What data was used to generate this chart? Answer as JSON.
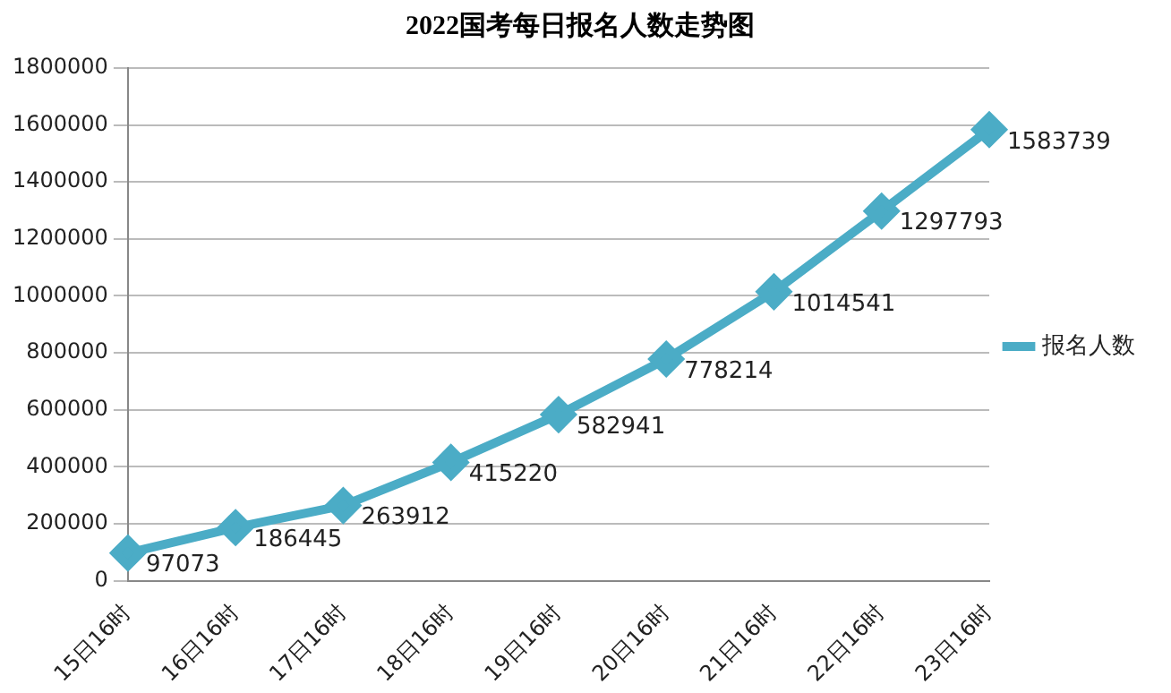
{
  "chart_data": {
    "type": "line",
    "title": "2022国考每日报名人数走势图",
    "categories": [
      "15日16时",
      "16日16时",
      "17日16时",
      "18日16时",
      "19日16时",
      "20日16时",
      "21日16时",
      "22日16时",
      "23日16时"
    ],
    "series": [
      {
        "name": "报名人数",
        "color": "#4bacc6",
        "values": [
          97073,
          186445,
          263912,
          415220,
          582941,
          778214,
          1014541,
          1297793,
          1583739
        ]
      }
    ],
    "ylim": [
      0,
      1800000
    ],
    "yticks": [
      0,
      200000,
      400000,
      600000,
      800000,
      1000000,
      1200000,
      1400000,
      1600000,
      1800000
    ],
    "grid": "y",
    "legend": "right",
    "marker": "diamond",
    "line_style": "solid",
    "data_labels": true
  }
}
